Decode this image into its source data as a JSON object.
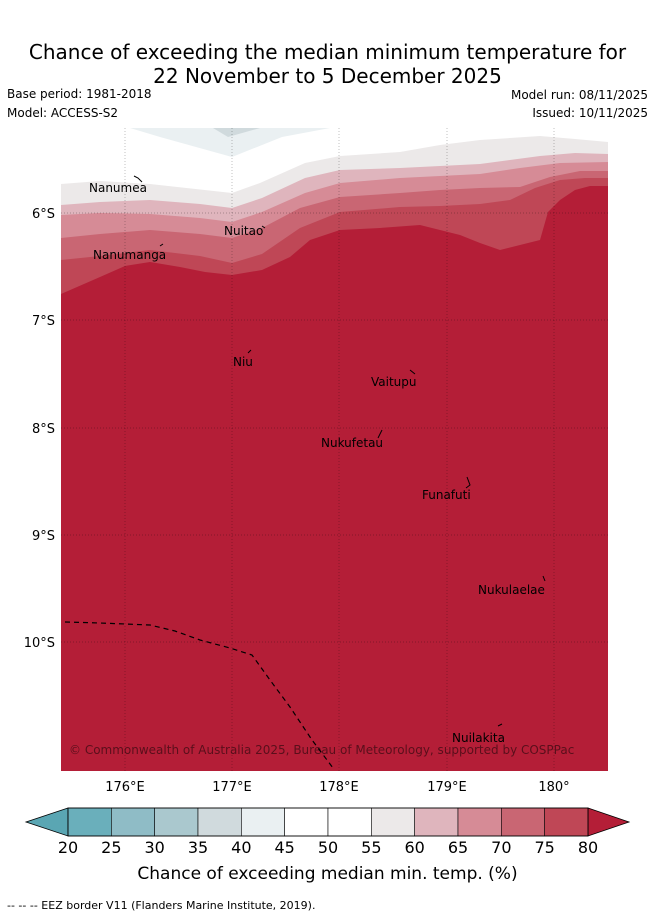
{
  "header": {
    "title_line1": "Chance of exceeding the median minimum temperature for",
    "title_line2": "22 November to 5 December 2025",
    "base_period": "Base period: 1981-2018",
    "model": "Model: ACCESS-S2",
    "model_run": "Model run: 08/11/2025",
    "issued": "Issued: 10/11/2025"
  },
  "map": {
    "lat_labels": [
      "6°S",
      "7°S",
      "8°S",
      "9°S",
      "10°S"
    ],
    "lon_labels": [
      "176°E",
      "177°E",
      "178°E",
      "179°E",
      "180°"
    ],
    "places": [
      "Nanumea",
      "Nuitao",
      "Nanumanga",
      "Niu",
      "Vaitupu",
      "Nukufetau",
      "Funafuti",
      "Nukulaelae",
      "Nuilakita"
    ],
    "copyright": "© Commonwealth of Australia 2025, Bureau of Meteorology, supported by COSPPac"
  },
  "colorbar": {
    "ticks": [
      "20",
      "25",
      "30",
      "35",
      "40",
      "45",
      "50",
      "55",
      "60",
      "65",
      "70",
      "75",
      "80"
    ],
    "colors": [
      "#6aafbb",
      "#8fbcc6",
      "#aac8ce",
      "#d0dadd",
      "#eaf0f2",
      "#ffffff",
      "#ffffff",
      "#ece9e9",
      "#dfb5bd",
      "#d68b96",
      "#c96673",
      "#bf4756"
    ],
    "low_extend_color": "#5aa6b3",
    "high_extend_color": "#b41e37",
    "title": "Chance of exceeding median min. temp. (%)"
  },
  "footnote": "--  --  -- EEZ border V11 (Flanders Marine Institute, 2019)."
}
